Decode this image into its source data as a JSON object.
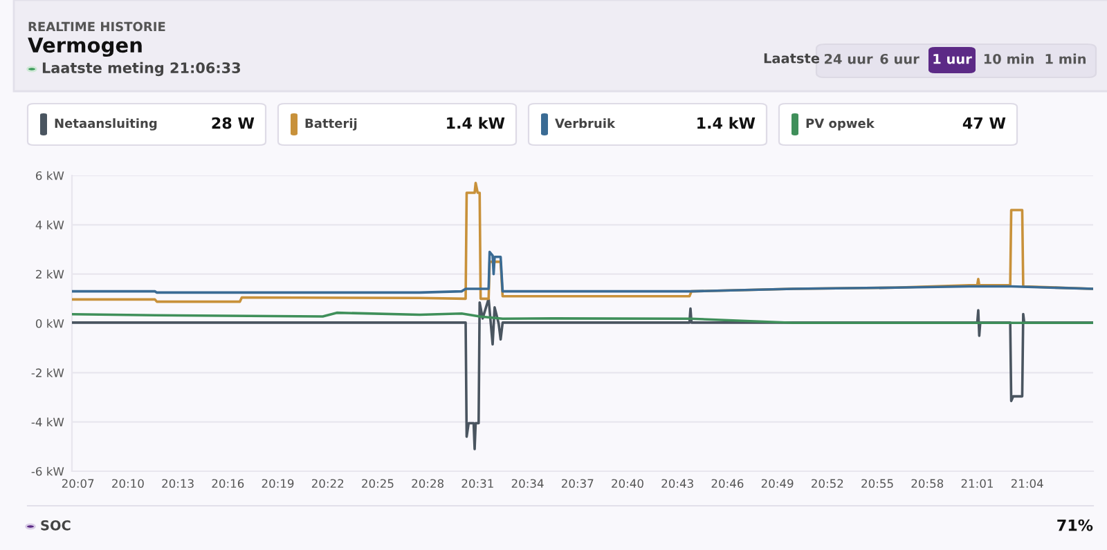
{
  "chart_data": {
    "type": "line",
    "title": "Vermogen",
    "annotations": [
      "REALTIME HISTORIE",
      "Laatste meting 21:06:33",
      "Laatste",
      "24 uur",
      "6 uur",
      "1 uur",
      "10 min",
      "1 min",
      "28 W",
      "1.4 kW",
      "1.4 kW",
      "47 W",
      "SOC",
      "71%"
    ],
    "series": [
      {
        "name": "Netaansluiting",
        "color": "#4a5560",
        "x": [
          20.111,
          20.505,
          20.506,
          20.508,
          20.513,
          20.514,
          20.515,
          20.518,
          20.519,
          20.522,
          20.528,
          20.532,
          20.534,
          20.538,
          20.54,
          20.542,
          20.729,
          20.73,
          20.731,
          21.017,
          21.018,
          21.019,
          21.02,
          21.05,
          21.051,
          21.053,
          21.062,
          21.063,
          21.064,
          21.133
        ],
        "values": [
          0.03,
          0.03,
          -4.6,
          -4.05,
          -4.05,
          -5.1,
          -4.05,
          -4.05,
          0.85,
          0.2,
          1.0,
          -0.85,
          0.65,
          0.0,
          -0.65,
          0.03,
          0.03,
          0.6,
          0.03,
          0.03,
          0.53,
          -0.5,
          0.03,
          0.03,
          -3.15,
          -2.96,
          -2.96,
          0.38,
          0.03,
          0.03
        ]
      },
      {
        "name": "Batterij",
        "color": "#c8913a",
        "x": [
          20.111,
          20.194,
          20.196,
          20.279,
          20.281,
          20.459,
          20.505,
          20.506,
          20.514,
          20.515,
          20.517,
          20.519,
          20.52,
          20.528,
          20.529,
          20.54,
          20.542,
          20.593,
          20.729,
          20.731,
          20.833,
          20.935,
          21.009,
          21.017,
          21.018,
          21.019,
          21.05,
          21.051,
          21.062,
          21.063,
          21.133
        ],
        "values": [
          0.97,
          0.97,
          0.88,
          0.88,
          1.05,
          1.03,
          1.0,
          5.3,
          5.3,
          5.7,
          5.3,
          5.3,
          1.0,
          1.0,
          2.5,
          2.5,
          1.1,
          1.1,
          1.1,
          1.3,
          1.4,
          1.45,
          1.55,
          1.55,
          1.8,
          1.55,
          1.55,
          4.6,
          4.6,
          1.5,
          1.4
        ]
      },
      {
        "name": "Verbruik",
        "color": "#3a6b94",
        "x": [
          20.111,
          20.194,
          20.196,
          20.459,
          20.501,
          20.505,
          20.528,
          20.529,
          20.532,
          20.533,
          20.534,
          20.54,
          20.542,
          20.593,
          20.73,
          20.833,
          20.935,
          21.009,
          21.051,
          21.133
        ],
        "values": [
          1.3,
          1.3,
          1.25,
          1.25,
          1.3,
          1.4,
          1.4,
          2.9,
          2.75,
          2.0,
          2.7,
          2.7,
          1.3,
          1.3,
          1.3,
          1.4,
          1.45,
          1.5,
          1.5,
          1.4
        ]
      },
      {
        "name": "PV opwek",
        "color": "#3f8f5a",
        "x": [
          20.111,
          20.194,
          20.362,
          20.376,
          20.459,
          20.501,
          20.519,
          20.542,
          20.593,
          20.73,
          20.833,
          21.133
        ],
        "values": [
          0.37,
          0.33,
          0.28,
          0.43,
          0.35,
          0.4,
          0.28,
          0.19,
          0.2,
          0.19,
          0.02,
          0.02
        ]
      }
    ],
    "xlim": [
      20.111,
      21.133
    ],
    "xticks": [
      {
        "value": 20.117,
        "label": "20:07"
      },
      {
        "value": 20.167,
        "label": "20:10"
      },
      {
        "value": 20.217,
        "label": "20:13"
      },
      {
        "value": 20.267,
        "label": "20:16"
      },
      {
        "value": 20.317,
        "label": "20:19"
      },
      {
        "value": 20.367,
        "label": "20:22"
      },
      {
        "value": 20.417,
        "label": "20:25"
      },
      {
        "value": 20.467,
        "label": "20:28"
      },
      {
        "value": 20.517,
        "label": "20:31"
      },
      {
        "value": 20.567,
        "label": "20:34"
      },
      {
        "value": 20.617,
        "label": "20:37"
      },
      {
        "value": 20.667,
        "label": "20:40"
      },
      {
        "value": 20.717,
        "label": "20:43"
      },
      {
        "value": 20.767,
        "label": "20:46"
      },
      {
        "value": 20.817,
        "label": "20:49"
      },
      {
        "value": 20.867,
        "label": "20:52"
      },
      {
        "value": 20.917,
        "label": "20:55"
      },
      {
        "value": 20.967,
        "label": "20:58"
      },
      {
        "value": 21.017,
        "label": "21:01"
      },
      {
        "value": 21.067,
        "label": "21:04"
      }
    ],
    "ylim": [
      -6,
      6
    ],
    "yticks": [
      {
        "value": -6,
        "label": "-6 kW"
      },
      {
        "value": -4,
        "label": "-4 kW"
      },
      {
        "value": -2,
        "label": "-2 kW"
      },
      {
        "value": 0,
        "label": "0 kW"
      },
      {
        "value": 2,
        "label": "2 kW"
      },
      {
        "value": 4,
        "label": "4 kW"
      },
      {
        "value": 6,
        "label": "6 kW"
      }
    ],
    "grid": "y",
    "legend": "top",
    "marker": "none",
    "line_style": "solid"
  }
}
